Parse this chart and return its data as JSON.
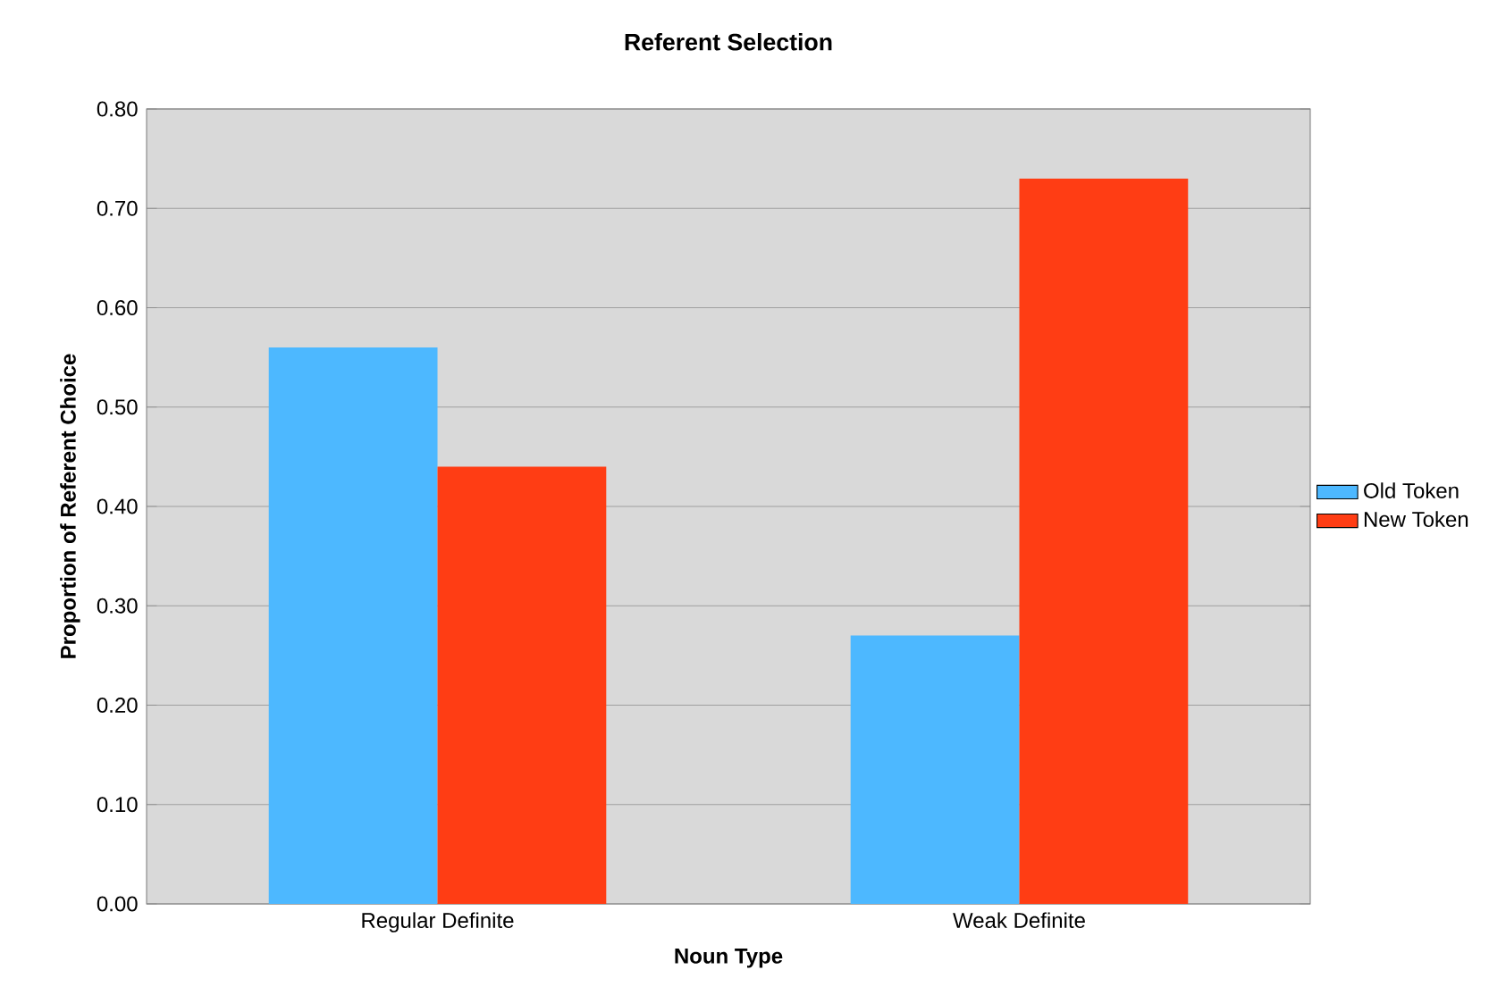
{
  "chart_data": {
    "type": "bar",
    "title": "Referent Selection",
    "xlabel": "Noun Type",
    "ylabel": "Proportion of Referent Choice",
    "categories": [
      "Regular Definite",
      "Weak Definite"
    ],
    "series": [
      {
        "name": "Old Token",
        "color": "#4db8ff",
        "values": [
          0.56,
          0.27
        ]
      },
      {
        "name": "New Token",
        "color": "#ff3d14",
        "values": [
          0.44,
          0.73
        ]
      }
    ],
    "ylim": [
      0,
      0.8
    ],
    "yticks": [
      {
        "value": 0,
        "label": "0.00"
      },
      {
        "value": 0.1,
        "label": "0.10"
      },
      {
        "value": 0.2,
        "label": "0.20"
      },
      {
        "value": 0.3,
        "label": "0.30"
      },
      {
        "value": 0.4,
        "label": "0.40"
      },
      {
        "value": 0.5,
        "label": "0.50"
      },
      {
        "value": 0.6,
        "label": "0.60"
      },
      {
        "value": 0.7,
        "label": "0.70"
      },
      {
        "value": 0.8,
        "label": "0.80"
      }
    ],
    "grid": "y",
    "legend": "right"
  }
}
